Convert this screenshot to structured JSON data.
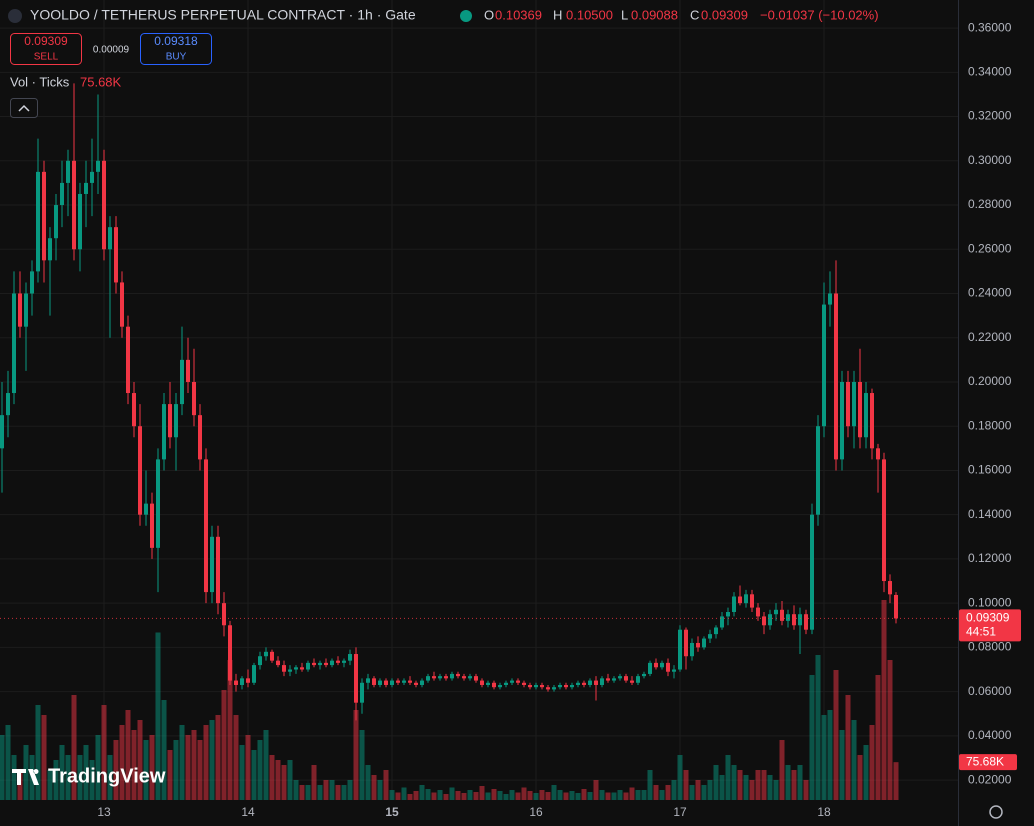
{
  "header": {
    "title": "YOOLDO / TETHERUS PERPETUAL CONTRACT · 1h · Gate",
    "ohlc": [
      {
        "label": "O",
        "value": "0.10369"
      },
      {
        "label": "H",
        "value": "0.10500"
      },
      {
        "label": "L",
        "value": "0.09088"
      },
      {
        "label": "C",
        "value": "0.09309"
      }
    ],
    "change": "−0.01037 (−10.02%)"
  },
  "trade": {
    "sell_price": "0.09309",
    "sell": "SELL",
    "spread": "0.00009",
    "buy_price": "0.09318",
    "buy": "BUY"
  },
  "volume_legend": {
    "label": "Vol · Ticks",
    "value": "75.68K"
  },
  "logo": "TradingView",
  "chart_data": {
    "type": "candlestick",
    "up_color": "#089981",
    "down_color": "#f23645",
    "ylim": [
      0.011,
      0.3727
    ],
    "yticks": [
      {
        "value": 0.36,
        "label": "0.36000"
      },
      {
        "value": 0.34,
        "label": "0.34000"
      },
      {
        "value": 0.32,
        "label": "0.32000"
      },
      {
        "value": 0.3,
        "label": "0.30000"
      },
      {
        "value": 0.28,
        "label": "0.28000"
      },
      {
        "value": 0.26,
        "label": "0.26000"
      },
      {
        "value": 0.24,
        "label": "0.24000"
      },
      {
        "value": 0.22,
        "label": "0.22000"
      },
      {
        "value": 0.2,
        "label": "0.20000"
      },
      {
        "value": 0.18,
        "label": "0.18000"
      },
      {
        "value": 0.16,
        "label": "0.16000"
      },
      {
        "value": 0.14,
        "label": "0.14000"
      },
      {
        "value": 0.12,
        "label": "0.12000"
      },
      {
        "value": 0.1,
        "label": "0.10000"
      },
      {
        "value": 0.08,
        "label": "0.08000"
      },
      {
        "value": 0.06,
        "label": "0.06000"
      },
      {
        "value": 0.04,
        "label": "0.04000"
      },
      {
        "value": 0.02,
        "label": "0.02000"
      }
    ],
    "grid": true,
    "last_price_label": "0.09309",
    "countdown": "44:51",
    "last_volume_label": "75.68K",
    "categories": [
      null,
      null,
      null,
      null,
      null,
      null,
      null,
      null,
      null,
      null,
      null,
      null,
      null,
      null,
      null,
      null,
      null,
      "13",
      null,
      null,
      null,
      null,
      null,
      null,
      null,
      null,
      null,
      null,
      null,
      null,
      null,
      null,
      null,
      null,
      null,
      null,
      null,
      null,
      null,
      null,
      null,
      "14",
      null,
      null,
      null,
      null,
      null,
      null,
      null,
      null,
      null,
      null,
      null,
      null,
      null,
      null,
      null,
      null,
      null,
      null,
      null,
      null,
      null,
      null,
      null,
      "15",
      null,
      null,
      null,
      null,
      null,
      null,
      null,
      null,
      null,
      null,
      null,
      null,
      null,
      null,
      null,
      null,
      null,
      null,
      null,
      null,
      null,
      null,
      null,
      "16",
      null,
      null,
      null,
      null,
      null,
      null,
      null,
      null,
      null,
      null,
      null,
      null,
      null,
      null,
      null,
      null,
      null,
      null,
      null,
      null,
      null,
      null,
      null,
      "17",
      null,
      null,
      null,
      null,
      null,
      null,
      null,
      null,
      null,
      null,
      null,
      null,
      null,
      null,
      null,
      null,
      null,
      null,
      null,
      null,
      null,
      null,
      null,
      "18",
      null,
      null,
      null,
      null,
      null,
      null,
      null,
      null,
      null,
      null,
      null,
      null
    ],
    "ohlc": [
      [
        0.17,
        0.2,
        0.15,
        0.185
      ],
      [
        0.185,
        0.205,
        0.175,
        0.195
      ],
      [
        0.195,
        0.25,
        0.19,
        0.24
      ],
      [
        0.24,
        0.25,
        0.22,
        0.225
      ],
      [
        0.225,
        0.245,
        0.205,
        0.24
      ],
      [
        0.24,
        0.255,
        0.23,
        0.25
      ],
      [
        0.25,
        0.31,
        0.245,
        0.295
      ],
      [
        0.295,
        0.3,
        0.245,
        0.255
      ],
      [
        0.255,
        0.27,
        0.23,
        0.265
      ],
      [
        0.265,
        0.285,
        0.255,
        0.28
      ],
      [
        0.28,
        0.3,
        0.27,
        0.29
      ],
      [
        0.29,
        0.305,
        0.275,
        0.3
      ],
      [
        0.3,
        0.335,
        0.255,
        0.26
      ],
      [
        0.26,
        0.29,
        0.25,
        0.285
      ],
      [
        0.285,
        0.3,
        0.27,
        0.29
      ],
      [
        0.29,
        0.31,
        0.275,
        0.295
      ],
      [
        0.295,
        0.33,
        0.285,
        0.3
      ],
      [
        0.3,
        0.305,
        0.255,
        0.26
      ],
      [
        0.26,
        0.275,
        0.22,
        0.27
      ],
      [
        0.27,
        0.275,
        0.24,
        0.245
      ],
      [
        0.245,
        0.25,
        0.22,
        0.225
      ],
      [
        0.225,
        0.23,
        0.19,
        0.195
      ],
      [
        0.195,
        0.2,
        0.175,
        0.18
      ],
      [
        0.18,
        0.19,
        0.135,
        0.14
      ],
      [
        0.14,
        0.16,
        0.135,
        0.145
      ],
      [
        0.145,
        0.15,
        0.12,
        0.125
      ],
      [
        0.125,
        0.17,
        0.105,
        0.165
      ],
      [
        0.165,
        0.195,
        0.16,
        0.19
      ],
      [
        0.19,
        0.2,
        0.17,
        0.175
      ],
      [
        0.175,
        0.195,
        0.16,
        0.19
      ],
      [
        0.19,
        0.225,
        0.185,
        0.21
      ],
      [
        0.21,
        0.22,
        0.195,
        0.2
      ],
      [
        0.2,
        0.215,
        0.18,
        0.185
      ],
      [
        0.185,
        0.19,
        0.16,
        0.165
      ],
      [
        0.165,
        0.17,
        0.1,
        0.105
      ],
      [
        0.105,
        0.135,
        0.1,
        0.13
      ],
      [
        0.13,
        0.135,
        0.095,
        0.1
      ],
      [
        0.1,
        0.105,
        0.085,
        0.09
      ],
      [
        0.09,
        0.092,
        0.063,
        0.065
      ],
      [
        0.065,
        0.068,
        0.06,
        0.063
      ],
      [
        0.063,
        0.067,
        0.061,
        0.066
      ],
      [
        0.066,
        0.07,
        0.062,
        0.064
      ],
      [
        0.064,
        0.073,
        0.063,
        0.072
      ],
      [
        0.072,
        0.078,
        0.07,
        0.076
      ],
      [
        0.076,
        0.08,
        0.074,
        0.078
      ],
      [
        0.078,
        0.079,
        0.073,
        0.074
      ],
      [
        0.074,
        0.076,
        0.071,
        0.072
      ],
      [
        0.072,
        0.074,
        0.067,
        0.069
      ],
      [
        0.069,
        0.072,
        0.067,
        0.07
      ],
      [
        0.07,
        0.072,
        0.068,
        0.071
      ],
      [
        0.071,
        0.073,
        0.069,
        0.07
      ],
      [
        0.07,
        0.074,
        0.069,
        0.073
      ],
      [
        0.073,
        0.075,
        0.071,
        0.072
      ],
      [
        0.072,
        0.074,
        0.07,
        0.073
      ],
      [
        0.073,
        0.075,
        0.071,
        0.072
      ],
      [
        0.072,
        0.075,
        0.071,
        0.074
      ],
      [
        0.074,
        0.076,
        0.072,
        0.073
      ],
      [
        0.073,
        0.075,
        0.071,
        0.074
      ],
      [
        0.074,
        0.079,
        0.072,
        0.077
      ],
      [
        0.077,
        0.08,
        0.047,
        0.055
      ],
      [
        0.055,
        0.066,
        0.05,
        0.064
      ],
      [
        0.064,
        0.068,
        0.061,
        0.066
      ],
      [
        0.066,
        0.067,
        0.062,
        0.063
      ],
      [
        0.063,
        0.066,
        0.062,
        0.065
      ],
      [
        0.065,
        0.066,
        0.062,
        0.063
      ],
      [
        0.063,
        0.066,
        0.062,
        0.065
      ],
      [
        0.065,
        0.066,
        0.063,
        0.064
      ],
      [
        0.064,
        0.066,
        0.063,
        0.065
      ],
      [
        0.065,
        0.067,
        0.063,
        0.064
      ],
      [
        0.064,
        0.065,
        0.062,
        0.063
      ],
      [
        0.063,
        0.066,
        0.062,
        0.065
      ],
      [
        0.065,
        0.068,
        0.064,
        0.067
      ],
      [
        0.067,
        0.069,
        0.065,
        0.066
      ],
      [
        0.066,
        0.068,
        0.065,
        0.067
      ],
      [
        0.067,
        0.068,
        0.065,
        0.066
      ],
      [
        0.066,
        0.069,
        0.065,
        0.068
      ],
      [
        0.068,
        0.069,
        0.066,
        0.067
      ],
      [
        0.067,
        0.068,
        0.065,
        0.066
      ],
      [
        0.066,
        0.068,
        0.065,
        0.067
      ],
      [
        0.067,
        0.068,
        0.064,
        0.065
      ],
      [
        0.065,
        0.066,
        0.062,
        0.063
      ],
      [
        0.063,
        0.065,
        0.062,
        0.064
      ],
      [
        0.064,
        0.065,
        0.061,
        0.062
      ],
      [
        0.062,
        0.064,
        0.061,
        0.063
      ],
      [
        0.063,
        0.065,
        0.062,
        0.064
      ],
      [
        0.064,
        0.066,
        0.063,
        0.065
      ],
      [
        0.065,
        0.066,
        0.063,
        0.064
      ],
      [
        0.064,
        0.065,
        0.062,
        0.063
      ],
      [
        0.063,
        0.064,
        0.061,
        0.062
      ],
      [
        0.062,
        0.064,
        0.061,
        0.063
      ],
      [
        0.063,
        0.064,
        0.061,
        0.062
      ],
      [
        0.062,
        0.063,
        0.06,
        0.061
      ],
      [
        0.061,
        0.063,
        0.06,
        0.062
      ],
      [
        0.062,
        0.064,
        0.061,
        0.063
      ],
      [
        0.063,
        0.064,
        0.061,
        0.062
      ],
      [
        0.062,
        0.064,
        0.061,
        0.063
      ],
      [
        0.063,
        0.065,
        0.062,
        0.064
      ],
      [
        0.064,
        0.065,
        0.062,
        0.063
      ],
      [
        0.063,
        0.066,
        0.062,
        0.065
      ],
      [
        0.065,
        0.067,
        0.056,
        0.063
      ],
      [
        0.063,
        0.067,
        0.062,
        0.066
      ],
      [
        0.066,
        0.068,
        0.064,
        0.065
      ],
      [
        0.065,
        0.067,
        0.064,
        0.066
      ],
      [
        0.066,
        0.068,
        0.065,
        0.067
      ],
      [
        0.067,
        0.068,
        0.064,
        0.065
      ],
      [
        0.065,
        0.067,
        0.063,
        0.064
      ],
      [
        0.064,
        0.068,
        0.063,
        0.067
      ],
      [
        0.067,
        0.069,
        0.066,
        0.068
      ],
      [
        0.068,
        0.074,
        0.067,
        0.073
      ],
      [
        0.073,
        0.075,
        0.07,
        0.071
      ],
      [
        0.071,
        0.074,
        0.07,
        0.073
      ],
      [
        0.073,
        0.075,
        0.067,
        0.069
      ],
      [
        0.069,
        0.072,
        0.066,
        0.07
      ],
      [
        0.07,
        0.09,
        0.069,
        0.088
      ],
      [
        0.088,
        0.089,
        0.07,
        0.076
      ],
      [
        0.076,
        0.084,
        0.074,
        0.082
      ],
      [
        0.082,
        0.085,
        0.078,
        0.08
      ],
      [
        0.08,
        0.085,
        0.079,
        0.084
      ],
      [
        0.084,
        0.088,
        0.082,
        0.086
      ],
      [
        0.086,
        0.09,
        0.084,
        0.089
      ],
      [
        0.089,
        0.096,
        0.088,
        0.094
      ],
      [
        0.094,
        0.098,
        0.09,
        0.096
      ],
      [
        0.096,
        0.105,
        0.094,
        0.103
      ],
      [
        0.103,
        0.108,
        0.099,
        0.1
      ],
      [
        0.1,
        0.106,
        0.098,
        0.104
      ],
      [
        0.104,
        0.106,
        0.096,
        0.098
      ],
      [
        0.098,
        0.1,
        0.092,
        0.094
      ],
      [
        0.094,
        0.096,
        0.086,
        0.09
      ],
      [
        0.09,
        0.097,
        0.088,
        0.095
      ],
      [
        0.095,
        0.1,
        0.092,
        0.097
      ],
      [
        0.097,
        0.101,
        0.09,
        0.092
      ],
      [
        0.092,
        0.097,
        0.089,
        0.095
      ],
      [
        0.095,
        0.099,
        0.088,
        0.09
      ],
      [
        0.09,
        0.098,
        0.077,
        0.095
      ],
      [
        0.095,
        0.097,
        0.086,
        0.088
      ],
      [
        0.088,
        0.145,
        0.086,
        0.14
      ],
      [
        0.14,
        0.185,
        0.135,
        0.18
      ],
      [
        0.18,
        0.245,
        0.175,
        0.235
      ],
      [
        0.235,
        0.25,
        0.225,
        0.24
      ],
      [
        0.24,
        0.255,
        0.16,
        0.165
      ],
      [
        0.165,
        0.205,
        0.16,
        0.2
      ],
      [
        0.2,
        0.205,
        0.175,
        0.18
      ],
      [
        0.18,
        0.205,
        0.17,
        0.2
      ],
      [
        0.2,
        0.215,
        0.17,
        0.175
      ],
      [
        0.175,
        0.2,
        0.17,
        0.195
      ],
      [
        0.195,
        0.197,
        0.165,
        0.17
      ],
      [
        0.17,
        0.172,
        0.15,
        0.165
      ],
      [
        0.165,
        0.168,
        0.105,
        0.11
      ],
      [
        0.11,
        0.113,
        0.1,
        0.104
      ],
      [
        0.10369,
        0.105,
        0.09088,
        0.09309
      ]
    ],
    "volume": [
      130000,
      150000,
      90000,
      60000,
      110000,
      90000,
      190000,
      170000,
      60000,
      80000,
      110000,
      90000,
      210000,
      90000,
      110000,
      80000,
      130000,
      190000,
      90000,
      120000,
      150000,
      180000,
      140000,
      160000,
      120000,
      130000,
      335000,
      200000,
      100000,
      120000,
      150000,
      130000,
      140000,
      120000,
      150000,
      160000,
      170000,
      220000,
      280000,
      170000,
      110000,
      130000,
      100000,
      120000,
      140000,
      90000,
      80000,
      70000,
      80000,
      40000,
      30000,
      30000,
      70000,
      30000,
      40000,
      40000,
      30000,
      30000,
      40000,
      180000,
      140000,
      70000,
      50000,
      40000,
      60000,
      20000,
      15000,
      25000,
      12000,
      18000,
      30000,
      22000,
      15000,
      20000,
      12000,
      25000,
      18000,
      14000,
      20000,
      16000,
      28000,
      15000,
      22000,
      18000,
      12000,
      20000,
      15000,
      25000,
      18000,
      14000,
      20000,
      16000,
      30000,
      20000,
      15000,
      18000,
      14000,
      22000,
      16000,
      40000,
      20000,
      15000,
      15000,
      20000,
      15000,
      25000,
      20000,
      20000,
      60000,
      30000,
      20000,
      30000,
      40000,
      90000,
      60000,
      30000,
      40000,
      30000,
      40000,
      70000,
      50000,
      90000,
      70000,
      60000,
      50000,
      40000,
      60000,
      60000,
      50000,
      40000,
      120000,
      70000,
      60000,
      70000,
      40000,
      250000,
      290000,
      170000,
      180000,
      260000,
      140000,
      210000,
      160000,
      90000,
      110000,
      150000,
      250000,
      400000,
      280000,
      75680
    ]
  }
}
